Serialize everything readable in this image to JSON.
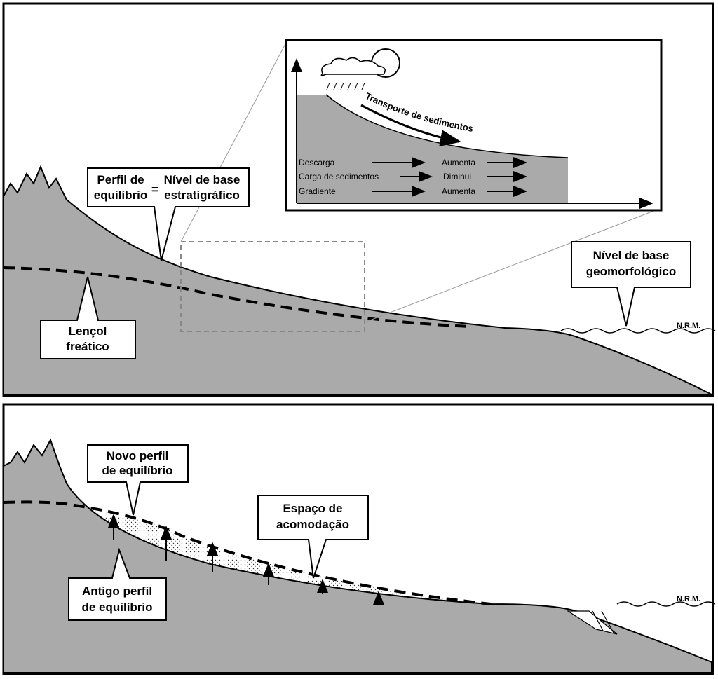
{
  "top_panel": {
    "profile_callout": {
      "left": [
        "Perfil de",
        "equilíbrio"
      ],
      "equals": "=",
      "right": [
        "Nível de base",
        "estratigráfico"
      ]
    },
    "water_table_callout": [
      "Lençol",
      "freático"
    ],
    "geomorphic_base_callout": [
      "Nível de base",
      "geomorfológico"
    ],
    "sea_level_label": "N.R.M.",
    "inset": {
      "transport_label": "Transporte de sedimentos",
      "rows": [
        [
          "Descarga",
          "Aumenta"
        ],
        [
          "Carga de sedimentos",
          "Diminui"
        ],
        [
          "Gradiente",
          "Aumenta"
        ]
      ]
    }
  },
  "bottom_panel": {
    "new_profile_callout": [
      "Novo perfil",
      "de equilíbrio"
    ],
    "accommodation_callout": [
      "Espaço de",
      "acomodação"
    ],
    "old_profile_callout": [
      "Antigo perfil",
      "de equilíbrio"
    ],
    "sea_level_label": "N.R.M."
  }
}
